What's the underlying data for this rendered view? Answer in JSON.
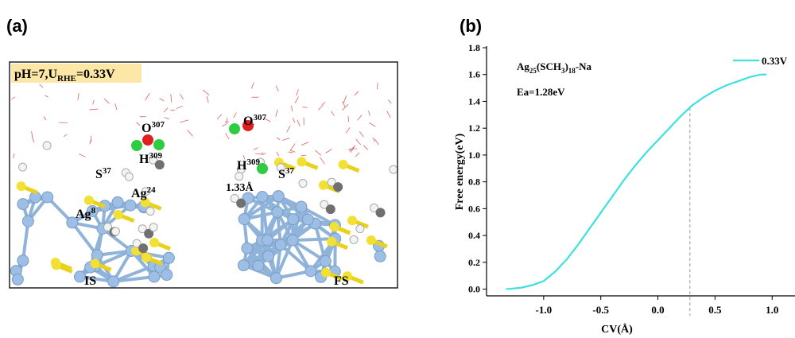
{
  "panel_a": {
    "label": "(a)",
    "header": {
      "text": "pH=7,U",
      "sub": "RHE",
      "tail": "=0.33V"
    },
    "atom_labels": [
      {
        "base": "O",
        "sup": "307"
      },
      {
        "base": "H",
        "sup": "309"
      },
      {
        "base": "S",
        "sup": "37"
      },
      {
        "base": "Ag",
        "sup": "24"
      },
      {
        "base": "Ag",
        "sup": "8"
      },
      {
        "base": "O",
        "sup": "307"
      },
      {
        "base": "H",
        "sup": "309"
      },
      {
        "base": "S",
        "sup": "37"
      }
    ],
    "bond_label": "1.33Å",
    "states": [
      "IS",
      "FS"
    ]
  },
  "chart_data": {
    "type": "line",
    "panel_label": "(b)",
    "xlabel": "CV(Å)",
    "ylabel": "Free energy(eV)",
    "annotations": [
      {
        "parts": [
          {
            "text": "Ag"
          },
          {
            "text": "25",
            "sub": true
          },
          {
            "text": "(SCH"
          },
          {
            "text": "3",
            "sub": true
          },
          {
            "text": ")"
          },
          {
            "text": "18",
            "sub": true
          },
          {
            "text": "-Na"
          }
        ]
      },
      {
        "parts": [
          {
            "text": "Ea=1.28eV"
          }
        ]
      }
    ],
    "x": [
      -1.33,
      -1.2,
      -1.1,
      -1.0,
      -0.9,
      -0.8,
      -0.7,
      -0.6,
      -0.5,
      -0.4,
      -0.3,
      -0.2,
      -0.1,
      0.0,
      0.1,
      0.2,
      0.3,
      0.4,
      0.5,
      0.6,
      0.7,
      0.8,
      0.9,
      0.95
    ],
    "series": [
      {
        "name": "0.33V",
        "color": "#3ee0e0",
        "values": [
          0.0,
          0.01,
          0.03,
          0.06,
          0.13,
          0.22,
          0.33,
          0.45,
          0.57,
          0.69,
          0.81,
          0.92,
          1.02,
          1.11,
          1.2,
          1.29,
          1.37,
          1.43,
          1.48,
          1.52,
          1.55,
          1.58,
          1.6,
          1.6
        ]
      }
    ],
    "vline_x": 0.28,
    "xlim": [
      -1.5,
      1.2
    ],
    "ylim": [
      -0.05,
      1.8
    ],
    "xticks": [
      {
        "value": -1.0,
        "label": "-1.0"
      },
      {
        "value": -0.5,
        "label": "-0.5"
      },
      {
        "value": 0.0,
        "label": "0.0"
      },
      {
        "value": 0.5,
        "label": "0.5"
      },
      {
        "value": 1.0,
        "label": "1.0"
      }
    ],
    "yticks": [
      {
        "value": 0.0,
        "label": "0.0"
      },
      {
        "value": 0.2,
        "label": "0.2"
      },
      {
        "value": 0.4,
        "label": "0.4"
      },
      {
        "value": 0.6,
        "label": "0.6"
      },
      {
        "value": 0.8,
        "label": "0.8"
      },
      {
        "value": 1.0,
        "label": "1.0"
      },
      {
        "value": 1.2,
        "label": "1.2"
      },
      {
        "value": 1.4,
        "label": "1.4"
      },
      {
        "value": 1.6,
        "label": "1.6"
      },
      {
        "value": 1.8,
        "label": "1.8"
      }
    ],
    "legend": "upper right",
    "grid": false
  }
}
